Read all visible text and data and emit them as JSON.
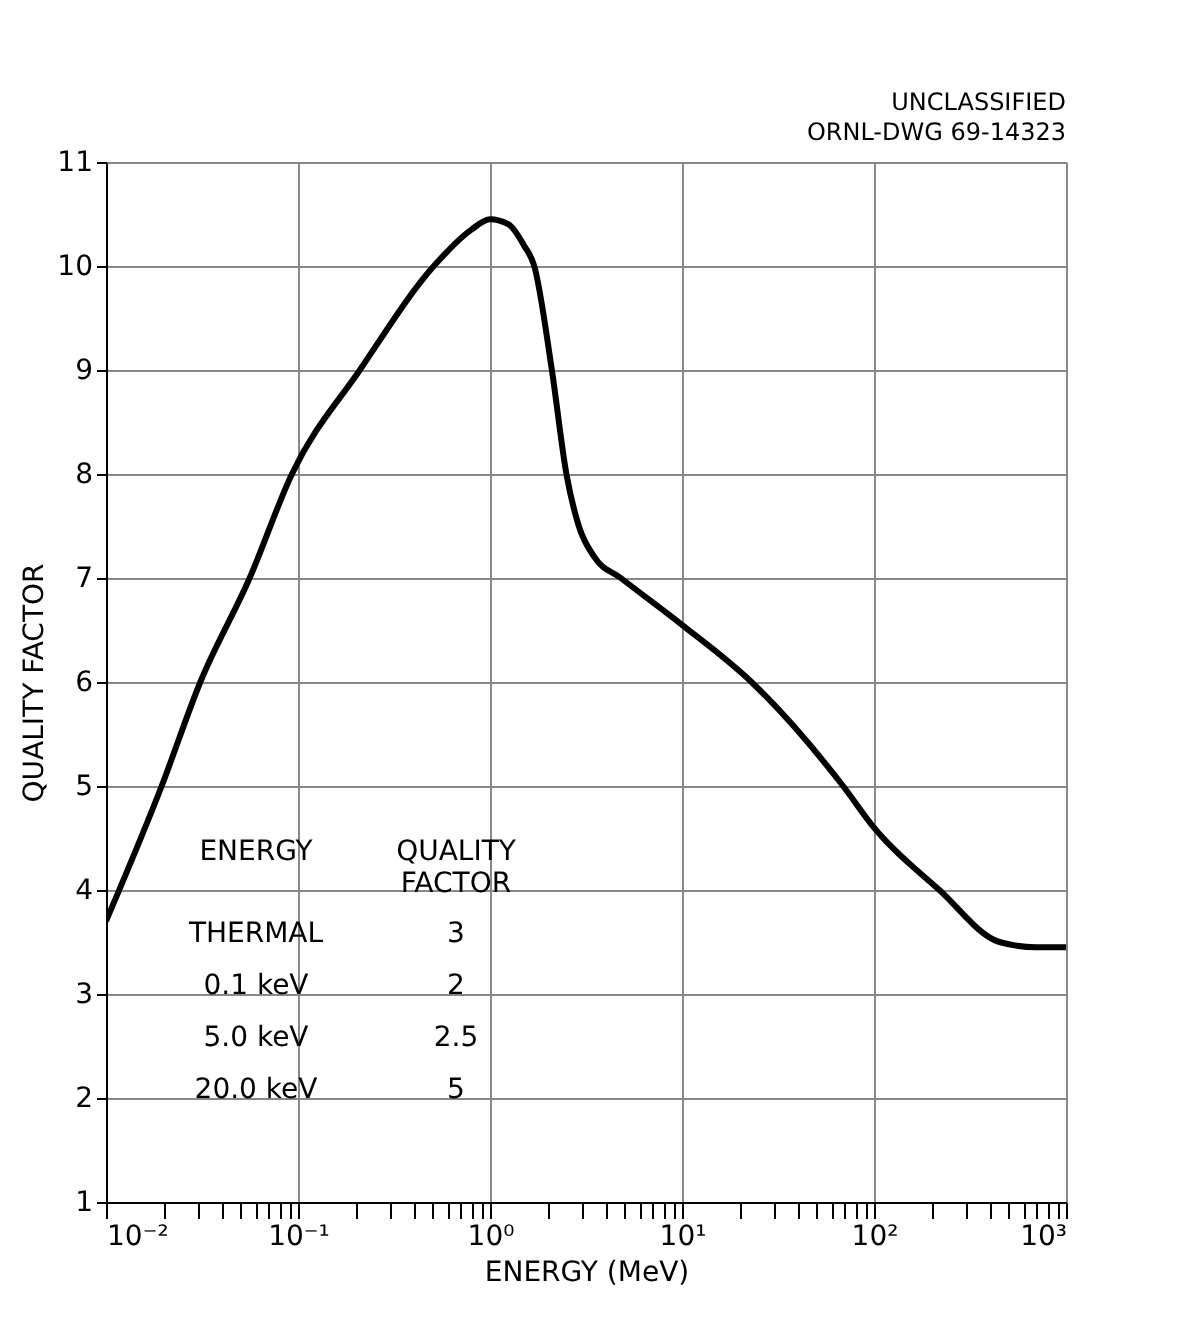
{
  "chart_data": {
    "type": "line",
    "xlabel": "ENERGY (MeV)",
    "ylabel": "QUALITY FACTOR",
    "log": "x",
    "grid": true,
    "marker": "none",
    "line_style": "solid",
    "annotations": [
      "UNCLASSIFIED",
      "ORNL-DWG 69-14323",
      "ENERGY",
      "QUALITY\nFACTOR",
      "THERMAL",
      "3",
      "0.1 keV",
      "2",
      "5.0 keV",
      "2.5",
      "20.0 keV",
      "5"
    ],
    "xlim": [
      0.01,
      1000
    ],
    "ylim": [
      1,
      11
    ],
    "xticks": [
      {
        "value": 0.01,
        "label": "10⁻²"
      },
      {
        "value": 0.02,
        "label": null
      },
      {
        "value": 0.03,
        "label": null
      },
      {
        "value": 0.04,
        "label": null
      },
      {
        "value": 0.05,
        "label": null
      },
      {
        "value": 0.06,
        "label": null
      },
      {
        "value": 0.07,
        "label": null
      },
      {
        "value": 0.08,
        "label": null
      },
      {
        "value": 0.09,
        "label": null
      },
      {
        "value": 0.1,
        "label": "10⁻¹"
      },
      {
        "value": 0.2,
        "label": null
      },
      {
        "value": 0.3,
        "label": null
      },
      {
        "value": 0.4,
        "label": null
      },
      {
        "value": 0.5,
        "label": null
      },
      {
        "value": 0.6,
        "label": null
      },
      {
        "value": 0.7,
        "label": null
      },
      {
        "value": 0.8,
        "label": null
      },
      {
        "value": 0.9,
        "label": null
      },
      {
        "value": 1,
        "label": "10⁰"
      },
      {
        "value": 2,
        "label": null
      },
      {
        "value": 3,
        "label": null
      },
      {
        "value": 4,
        "label": null
      },
      {
        "value": 5,
        "label": null
      },
      {
        "value": 6,
        "label": null
      },
      {
        "value": 7,
        "label": null
      },
      {
        "value": 8,
        "label": null
      },
      {
        "value": 9,
        "label": null
      },
      {
        "value": 10,
        "label": "10¹"
      },
      {
        "value": 20,
        "label": null
      },
      {
        "value": 30,
        "label": null
      },
      {
        "value": 40,
        "label": null
      },
      {
        "value": 50,
        "label": null
      },
      {
        "value": 60,
        "label": null
      },
      {
        "value": 70,
        "label": null
      },
      {
        "value": 80,
        "label": null
      },
      {
        "value": 90,
        "label": null
      },
      {
        "value": 100,
        "label": "10²"
      },
      {
        "value": 200,
        "label": null
      },
      {
        "value": 300,
        "label": null
      },
      {
        "value": 400,
        "label": null
      },
      {
        "value": 500,
        "label": null
      },
      {
        "value": 600,
        "label": null
      },
      {
        "value": 700,
        "label": null
      },
      {
        "value": 800,
        "label": null
      },
      {
        "value": 900,
        "label": null
      },
      {
        "value": 1000,
        "label": "10³"
      }
    ],
    "yticks": [
      1,
      2,
      3,
      4,
      5,
      6,
      7,
      8,
      9,
      10,
      11
    ],
    "series": [
      {
        "color": "#000000",
        "x": [
          0.01,
          0.0195,
          0.031,
          0.056,
          0.093,
          0.21,
          0.51,
          0.8,
          1.0,
          1.25,
          1.5,
          1.7,
          2.1,
          2.5,
          2.9,
          3.5,
          4.8,
          10,
          23,
          69,
          100,
          219,
          450,
          700,
          1000
        ],
        "values": [
          3.7,
          5.0,
          6.0,
          7.0,
          8.0,
          9.0,
          10.0,
          10.35,
          10.45,
          10.4,
          10.2,
          10.0,
          9.0,
          8.0,
          7.5,
          7.2,
          7.0,
          6.55,
          6.0,
          5.0,
          4.6,
          4.0,
          3.5,
          3.45,
          3.45
        ]
      }
    ]
  }
}
